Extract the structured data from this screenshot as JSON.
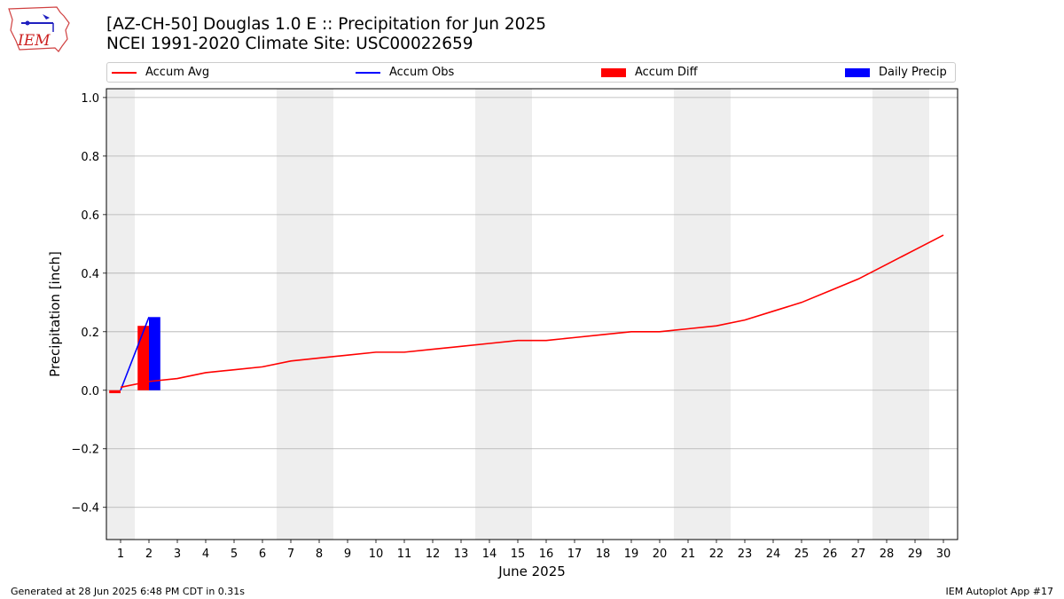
{
  "header": {
    "title_line1": "[AZ-CH-50] Douglas 1.0 E :: Precipitation for Jun 2025",
    "title_line2": "NCEI 1991-2020 Climate Site: USC00022659",
    "logo_text": "IEM"
  },
  "footer": {
    "generated": "Generated at 28 Jun 2025 6:48 PM CDT in 0.31s",
    "app": "IEM Autoplot App #17"
  },
  "chart_data": {
    "type": "line",
    "xlabel": "June 2025",
    "ylabel": "Precipitation [inch]",
    "xlim": [
      0.5,
      30.5
    ],
    "ylim": [
      -0.51,
      1.03
    ],
    "x_ticks": [
      1,
      2,
      3,
      4,
      5,
      6,
      7,
      8,
      9,
      10,
      11,
      12,
      13,
      14,
      15,
      16,
      17,
      18,
      19,
      20,
      21,
      22,
      23,
      24,
      25,
      26,
      27,
      28,
      29,
      30
    ],
    "y_ticks": [
      -0.4,
      -0.2,
      0.0,
      0.2,
      0.4,
      0.6,
      0.8,
      1.0
    ],
    "y_tick_labels": [
      "−0.4",
      "−0.2",
      "0.0",
      "0.2",
      "0.4",
      "0.6",
      "0.8",
      "1.0"
    ],
    "grid": "horizontal",
    "legend_position": "top, outside plot",
    "weekend_spans": [
      [
        0.5,
        1.5
      ],
      [
        6.5,
        8.5
      ],
      [
        13.5,
        15.5
      ],
      [
        20.5,
        22.5
      ],
      [
        27.5,
        29.5
      ]
    ],
    "colors": {
      "accum_avg": "#ff0000",
      "accum_obs": "#0000ff",
      "accum_diff": "#ff0000",
      "daily_precip": "#0000ff",
      "weekend_shade": "#eeeeee",
      "grid": "#b0b0b0"
    },
    "series": [
      {
        "name": "Accum Avg",
        "kind": "line",
        "x": [
          1,
          2,
          3,
          4,
          5,
          6,
          7,
          8,
          9,
          10,
          11,
          12,
          13,
          14,
          15,
          16,
          17,
          18,
          19,
          20,
          21,
          22,
          23,
          24,
          25,
          26,
          27,
          28,
          29,
          30
        ],
        "values": [
          0.01,
          0.03,
          0.04,
          0.06,
          0.07,
          0.08,
          0.1,
          0.11,
          0.12,
          0.13,
          0.13,
          0.14,
          0.15,
          0.16,
          0.17,
          0.17,
          0.18,
          0.19,
          0.2,
          0.2,
          0.21,
          0.22,
          0.24,
          0.27,
          0.3,
          0.34,
          0.38,
          0.43,
          0.48,
          0.53
        ]
      },
      {
        "name": "Accum Obs",
        "kind": "line",
        "x": [
          1,
          2
        ],
        "values": [
          0.0,
          0.25
        ]
      },
      {
        "name": "Accum Diff",
        "kind": "bar",
        "x": [
          1,
          2
        ],
        "values": [
          -0.01,
          0.22
        ]
      },
      {
        "name": "Daily Precip",
        "kind": "bar",
        "x": [
          1,
          2
        ],
        "values": [
          0.0,
          0.25
        ]
      }
    ]
  }
}
